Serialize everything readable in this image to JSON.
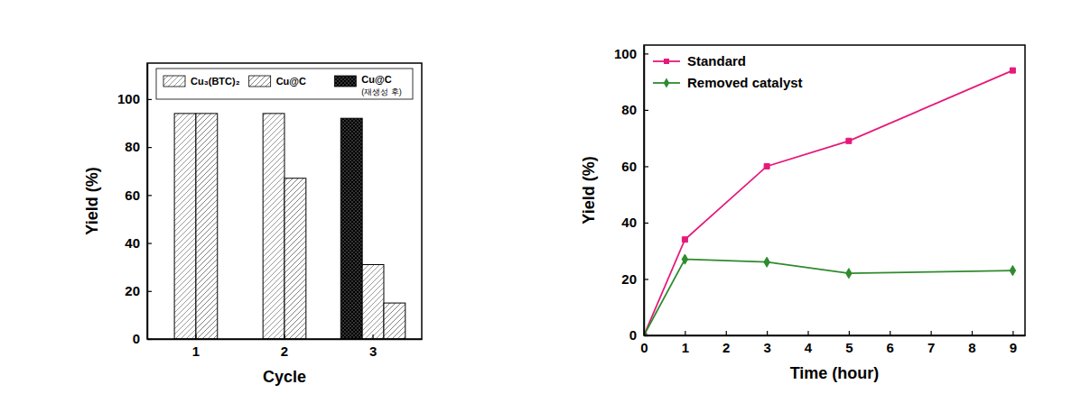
{
  "chart_data": [
    {
      "type": "bar",
      "x_label": "Cycle",
      "y_label": "Yield (%)",
      "categories": [
        "1",
        "2",
        "3"
      ],
      "series": [
        {
          "name": "Cu₃(BTC)₂",
          "color": "#808080",
          "values": [
            94,
            94,
            31
          ]
        },
        {
          "name": "Cu@C",
          "color": "#808080",
          "values": [
            94,
            67,
            15
          ]
        },
        {
          "name": "Cu@C (재생성 후)",
          "color": "#000000",
          "values": [
            null,
            null,
            92
          ]
        }
      ],
      "ylim": [
        0,
        115
      ],
      "yticks": [
        0,
        20,
        40,
        60,
        80,
        100
      ],
      "grid": false,
      "legend": "top"
    },
    {
      "type": "line",
      "x_label": "Time (hour)",
      "y_label": "Yield (%)",
      "x": [
        0,
        1,
        3,
        5,
        9
      ],
      "series": [
        {
          "name": "Standard",
          "color": "#e6197a",
          "marker": "square",
          "values": [
            0,
            34,
            60,
            69,
            94
          ]
        },
        {
          "name": "Removed catalyst",
          "color": "#2e8b2e",
          "marker": "diamond",
          "values": [
            0,
            27,
            26,
            22,
            23
          ]
        }
      ],
      "xlim": [
        0,
        9.3
      ],
      "xticks": [
        0,
        1,
        2,
        3,
        4,
        5,
        6,
        7,
        8,
        9
      ],
      "ylim": [
        0,
        103
      ],
      "yticks": [
        0,
        20,
        40,
        60,
        80,
        100
      ],
      "grid": false,
      "legend": "upper left"
    }
  ]
}
